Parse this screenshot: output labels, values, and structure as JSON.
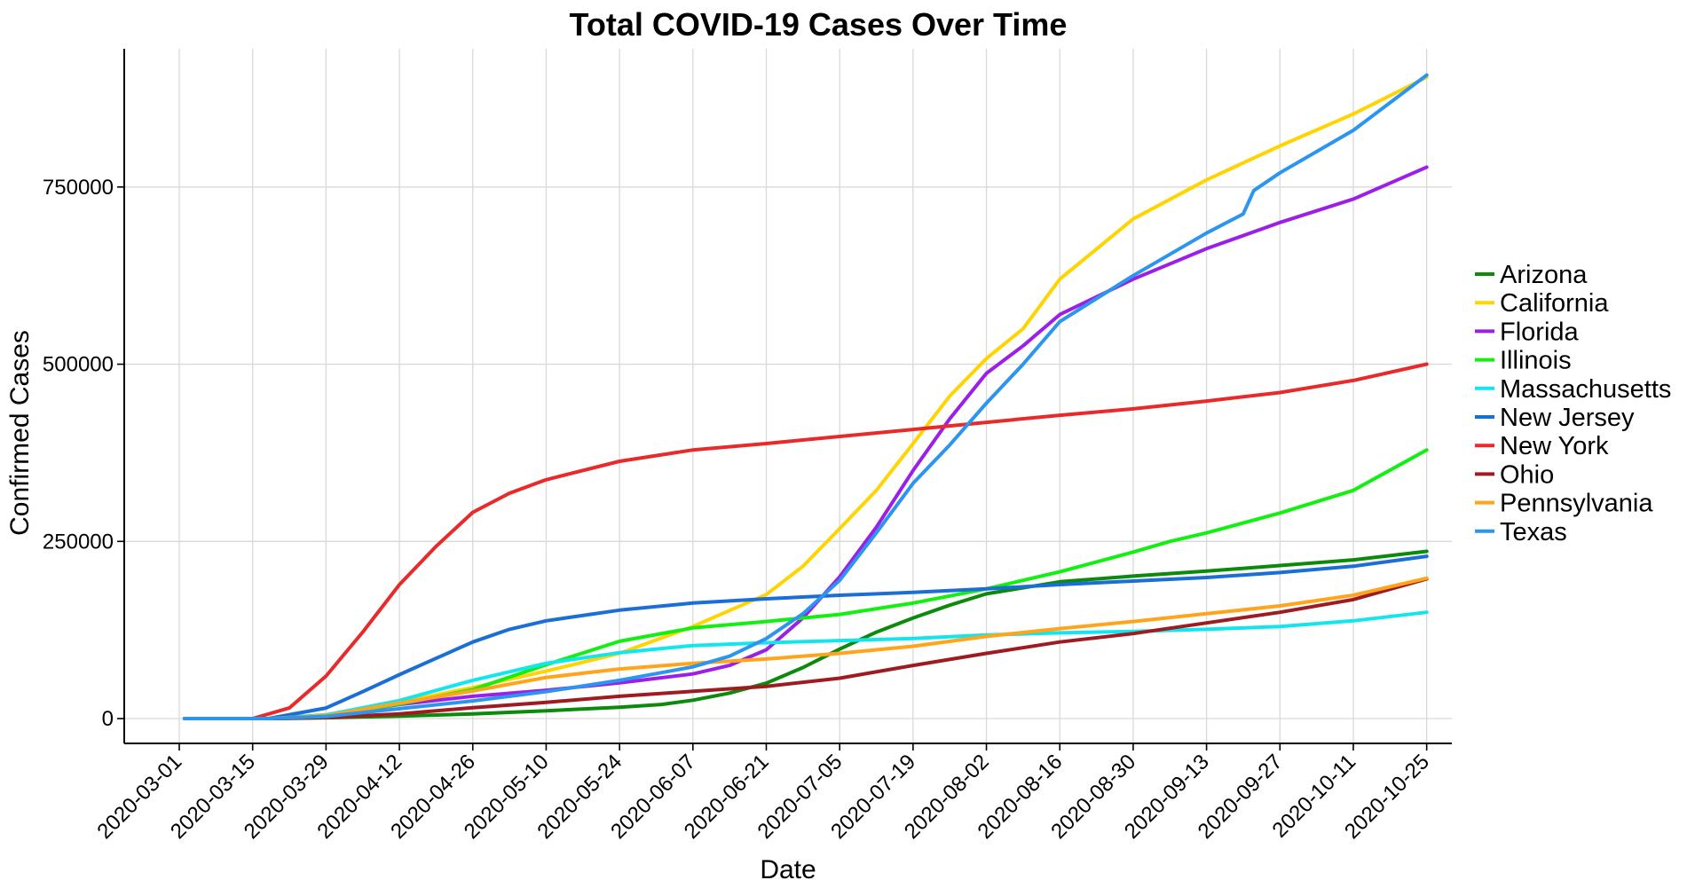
{
  "chart_data": {
    "type": "line",
    "title": "Total COVID-19 Cases Over Time",
    "xlabel": "Date",
    "ylabel": "Confirmed Cases",
    "x_range": [
      "2020-03-01",
      "2020-10-25"
    ],
    "ylim": [
      -35000,
      945000
    ],
    "y_ticks": [
      0,
      250000,
      500000,
      750000
    ],
    "y_tick_labels": [
      "0",
      "250000",
      "500000",
      "750000"
    ],
    "x_ticks": [
      "2020-03-01",
      "2020-03-15",
      "2020-03-29",
      "2020-04-12",
      "2020-04-26",
      "2020-05-10",
      "2020-05-24",
      "2020-06-07",
      "2020-06-21",
      "2020-07-05",
      "2020-07-19",
      "2020-08-02",
      "2020-08-16",
      "2020-08-30",
      "2020-09-13",
      "2020-09-27",
      "2020-10-11",
      "2020-10-25"
    ],
    "grid": true,
    "legend_position": "right",
    "series": [
      {
        "name": "Arizona",
        "color": "#0b8a0b",
        "points": [
          [
            "2020-03-02",
            0
          ],
          [
            "2020-03-20",
            0
          ],
          [
            "2020-04-01",
            1500
          ],
          [
            "2020-04-12",
            3500
          ],
          [
            "2020-04-26",
            6500
          ],
          [
            "2020-05-10",
            11000
          ],
          [
            "2020-05-24",
            16000
          ],
          [
            "2020-06-01",
            20000
          ],
          [
            "2020-06-07",
            26000
          ],
          [
            "2020-06-14",
            36000
          ],
          [
            "2020-06-21",
            50000
          ],
          [
            "2020-06-28",
            72000
          ],
          [
            "2020-07-05",
            98000
          ],
          [
            "2020-07-12",
            122000
          ],
          [
            "2020-07-19",
            142000
          ],
          [
            "2020-07-26",
            160000
          ],
          [
            "2020-08-02",
            176000
          ],
          [
            "2020-08-16",
            193000
          ],
          [
            "2020-08-30",
            201000
          ],
          [
            "2020-09-13",
            208000
          ],
          [
            "2020-09-27",
            216000
          ],
          [
            "2020-10-11",
            224000
          ],
          [
            "2020-10-25",
            236000
          ]
        ]
      },
      {
        "name": "California",
        "color": "#ffd400",
        "points": [
          [
            "2020-03-02",
            0
          ],
          [
            "2020-03-18",
            0
          ],
          [
            "2020-03-29",
            5500
          ],
          [
            "2020-04-12",
            23000
          ],
          [
            "2020-04-26",
            44000
          ],
          [
            "2020-05-10",
            67000
          ],
          [
            "2020-05-24",
            92000
          ],
          [
            "2020-06-07",
            130000
          ],
          [
            "2020-06-21",
            175000
          ],
          [
            "2020-06-28",
            215000
          ],
          [
            "2020-07-05",
            268000
          ],
          [
            "2020-07-12",
            322000
          ],
          [
            "2020-07-19",
            388000
          ],
          [
            "2020-07-26",
            455000
          ],
          [
            "2020-08-02",
            508000
          ],
          [
            "2020-08-09",
            550000
          ],
          [
            "2020-08-16",
            620000
          ],
          [
            "2020-08-30",
            705000
          ],
          [
            "2020-09-13",
            760000
          ],
          [
            "2020-09-27",
            808000
          ],
          [
            "2020-10-11",
            853000
          ],
          [
            "2020-10-25",
            905000
          ]
        ]
      },
      {
        "name": "Florida",
        "color": "#9b1fe8",
        "points": [
          [
            "2020-03-02",
            0
          ],
          [
            "2020-03-18",
            0
          ],
          [
            "2020-03-29",
            4500
          ],
          [
            "2020-04-12",
            20000
          ],
          [
            "2020-04-26",
            31500
          ],
          [
            "2020-05-10",
            40000
          ],
          [
            "2020-05-24",
            50500
          ],
          [
            "2020-06-07",
            63000
          ],
          [
            "2020-06-14",
            75000
          ],
          [
            "2020-06-21",
            97000
          ],
          [
            "2020-06-28",
            142000
          ],
          [
            "2020-07-05",
            200000
          ],
          [
            "2020-07-12",
            270000
          ],
          [
            "2020-07-19",
            350000
          ],
          [
            "2020-07-26",
            423000
          ],
          [
            "2020-08-02",
            487000
          ],
          [
            "2020-08-09",
            526000
          ],
          [
            "2020-08-16",
            570000
          ],
          [
            "2020-08-30",
            620000
          ],
          [
            "2020-09-13",
            663000
          ],
          [
            "2020-09-27",
            700000
          ],
          [
            "2020-10-11",
            733000
          ],
          [
            "2020-10-25",
            778000
          ]
        ]
      },
      {
        "name": "Illinois",
        "color": "#11f011",
        "points": [
          [
            "2020-03-02",
            0
          ],
          [
            "2020-03-18",
            0
          ],
          [
            "2020-03-29",
            4500
          ],
          [
            "2020-04-12",
            20500
          ],
          [
            "2020-04-26",
            41000
          ],
          [
            "2020-05-10",
            76000
          ],
          [
            "2020-05-24",
            109000
          ],
          [
            "2020-06-07",
            128000
          ],
          [
            "2020-06-21",
            137000
          ],
          [
            "2020-07-05",
            147000
          ],
          [
            "2020-07-19",
            163000
          ],
          [
            "2020-08-02",
            183000
          ],
          [
            "2020-08-16",
            207000
          ],
          [
            "2020-08-30",
            235000
          ],
          [
            "2020-09-06",
            250000
          ],
          [
            "2020-09-13",
            262000
          ],
          [
            "2020-09-27",
            290000
          ],
          [
            "2020-10-11",
            322000
          ],
          [
            "2020-10-25",
            379000
          ]
        ]
      },
      {
        "name": "Massachusetts",
        "color": "#11e6ee",
        "points": [
          [
            "2020-03-02",
            0
          ],
          [
            "2020-03-18",
            0
          ],
          [
            "2020-03-29",
            5000
          ],
          [
            "2020-04-12",
            25500
          ],
          [
            "2020-04-26",
            54000
          ],
          [
            "2020-05-10",
            78000
          ],
          [
            "2020-05-24",
            93000
          ],
          [
            "2020-06-07",
            103000
          ],
          [
            "2020-06-21",
            107000
          ],
          [
            "2020-07-05",
            110000
          ],
          [
            "2020-07-19",
            113000
          ],
          [
            "2020-08-02",
            118000
          ],
          [
            "2020-08-16",
            121000
          ],
          [
            "2020-08-30",
            123000
          ],
          [
            "2020-09-13",
            126000
          ],
          [
            "2020-09-27",
            130000
          ],
          [
            "2020-10-11",
            138000
          ],
          [
            "2020-10-25",
            150000
          ]
        ]
      },
      {
        "name": "New Jersey",
        "color": "#1a6ed6",
        "points": [
          [
            "2020-03-02",
            0
          ],
          [
            "2020-03-18",
            0
          ],
          [
            "2020-03-29",
            15000
          ],
          [
            "2020-04-05",
            38000
          ],
          [
            "2020-04-12",
            62000
          ],
          [
            "2020-04-19",
            85000
          ],
          [
            "2020-04-26",
            108000
          ],
          [
            "2020-05-03",
            126000
          ],
          [
            "2020-05-10",
            138000
          ],
          [
            "2020-05-24",
            153000
          ],
          [
            "2020-06-07",
            163000
          ],
          [
            "2020-06-21",
            169000
          ],
          [
            "2020-07-05",
            174000
          ],
          [
            "2020-07-19",
            178000
          ],
          [
            "2020-08-02",
            183000
          ],
          [
            "2020-08-16",
            189000
          ],
          [
            "2020-08-30",
            194000
          ],
          [
            "2020-09-13",
            199000
          ],
          [
            "2020-09-27",
            206000
          ],
          [
            "2020-10-11",
            215000
          ],
          [
            "2020-10-25",
            229000
          ]
        ]
      },
      {
        "name": "New York",
        "color": "#e82a2a",
        "points": [
          [
            "2020-03-02",
            0
          ],
          [
            "2020-03-15",
            0
          ],
          [
            "2020-03-22",
            15000
          ],
          [
            "2020-03-29",
            60000
          ],
          [
            "2020-04-05",
            122000
          ],
          [
            "2020-04-12",
            189000
          ],
          [
            "2020-04-19",
            243000
          ],
          [
            "2020-04-26",
            291000
          ],
          [
            "2020-05-03",
            318000
          ],
          [
            "2020-05-10",
            337000
          ],
          [
            "2020-05-24",
            363000
          ],
          [
            "2020-06-07",
            379000
          ],
          [
            "2020-06-21",
            388000
          ],
          [
            "2020-07-05",
            398000
          ],
          [
            "2020-07-19",
            408000
          ],
          [
            "2020-08-02",
            418000
          ],
          [
            "2020-08-16",
            428000
          ],
          [
            "2020-08-30",
            437000
          ],
          [
            "2020-09-13",
            448000
          ],
          [
            "2020-09-27",
            460000
          ],
          [
            "2020-10-11",
            477000
          ],
          [
            "2020-10-25",
            500000
          ]
        ]
      },
      {
        "name": "Ohio",
        "color": "#9e1b22",
        "points": [
          [
            "2020-03-02",
            0
          ],
          [
            "2020-03-18",
            0
          ],
          [
            "2020-03-29",
            1500
          ],
          [
            "2020-04-12",
            6500
          ],
          [
            "2020-04-26",
            15500
          ],
          [
            "2020-05-10",
            23000
          ],
          [
            "2020-05-24",
            31500
          ],
          [
            "2020-06-07",
            38500
          ],
          [
            "2020-06-21",
            45500
          ],
          [
            "2020-07-05",
            57000
          ],
          [
            "2020-07-19",
            75000
          ],
          [
            "2020-08-02",
            92000
          ],
          [
            "2020-08-16",
            108000
          ],
          [
            "2020-08-30",
            120000
          ],
          [
            "2020-09-13",
            135000
          ],
          [
            "2020-09-27",
            150000
          ],
          [
            "2020-10-11",
            168000
          ],
          [
            "2020-10-25",
            197000
          ]
        ]
      },
      {
        "name": "Pennsylvania",
        "color": "#ffa41b",
        "points": [
          [
            "2020-03-02",
            0
          ],
          [
            "2020-03-18",
            0
          ],
          [
            "2020-03-29",
            4000
          ],
          [
            "2020-04-12",
            22000
          ],
          [
            "2020-04-26",
            39000
          ],
          [
            "2020-05-10",
            58000
          ],
          [
            "2020-05-24",
            70000
          ],
          [
            "2020-06-07",
            78000
          ],
          [
            "2020-06-21",
            84000
          ],
          [
            "2020-07-05",
            92000
          ],
          [
            "2020-07-19",
            102000
          ],
          [
            "2020-08-02",
            116000
          ],
          [
            "2020-08-16",
            127000
          ],
          [
            "2020-08-30",
            137000
          ],
          [
            "2020-09-13",
            148000
          ],
          [
            "2020-09-27",
            159000
          ],
          [
            "2020-10-11",
            174000
          ],
          [
            "2020-10-25",
            198000
          ]
        ]
      },
      {
        "name": "Texas",
        "color": "#2b95f0",
        "points": [
          [
            "2020-03-02",
            0
          ],
          [
            "2020-03-18",
            0
          ],
          [
            "2020-03-29",
            3000
          ],
          [
            "2020-04-12",
            14000
          ],
          [
            "2020-04-26",
            25000
          ],
          [
            "2020-05-10",
            38000
          ],
          [
            "2020-05-24",
            54000
          ],
          [
            "2020-06-07",
            73000
          ],
          [
            "2020-06-14",
            88000
          ],
          [
            "2020-06-21",
            113000
          ],
          [
            "2020-06-28",
            148000
          ],
          [
            "2020-07-05",
            195000
          ],
          [
            "2020-07-12",
            262000
          ],
          [
            "2020-07-19",
            332000
          ],
          [
            "2020-07-26",
            386000
          ],
          [
            "2020-08-02",
            445000
          ],
          [
            "2020-08-09",
            500000
          ],
          [
            "2020-08-16",
            560000
          ],
          [
            "2020-08-30",
            625000
          ],
          [
            "2020-09-13",
            685000
          ],
          [
            "2020-09-20",
            712000
          ],
          [
            "2020-09-22",
            745000
          ],
          [
            "2020-09-27",
            770000
          ],
          [
            "2020-10-11",
            830000
          ],
          [
            "2020-10-25",
            908000
          ]
        ]
      }
    ]
  }
}
